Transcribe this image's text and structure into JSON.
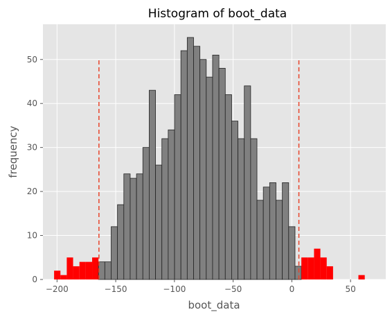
{
  "chart_data": {
    "type": "bar",
    "title": "Histogram of boot_data",
    "xlabel": "boot_data",
    "ylabel": "frequency",
    "xlim": [
      -212,
      80
    ],
    "ylim": [
      0,
      58
    ],
    "xticks": [
      -200,
      -150,
      -100,
      -50,
      0,
      50
    ],
    "yticks": [
      0,
      10,
      20,
      30,
      40,
      50
    ],
    "grid": true,
    "bin_start": -202.5,
    "bin_width": 5.4,
    "values": [
      2,
      1,
      5,
      3,
      4,
      4,
      5,
      4,
      4,
      12,
      17,
      24,
      23,
      24,
      30,
      43,
      26,
      32,
      34,
      42,
      52,
      55,
      53,
      50,
      46,
      51,
      48,
      42,
      36,
      32,
      44,
      32,
      18,
      21,
      22,
      18,
      22,
      12,
      3,
      5,
      5,
      7,
      5,
      3,
      0,
      0,
      0,
      0,
      1
    ],
    "highlight_below": -164.3,
    "highlight_above": 6,
    "highlight_color": "#ff0000",
    "bar_color": "#808080",
    "bar_edge_color": "#222222",
    "ci_lines": [
      -164.3,
      6
    ],
    "ci_line_top": 50,
    "ci_line_color": "#e8432a",
    "background_color": "#e5e5e5"
  }
}
